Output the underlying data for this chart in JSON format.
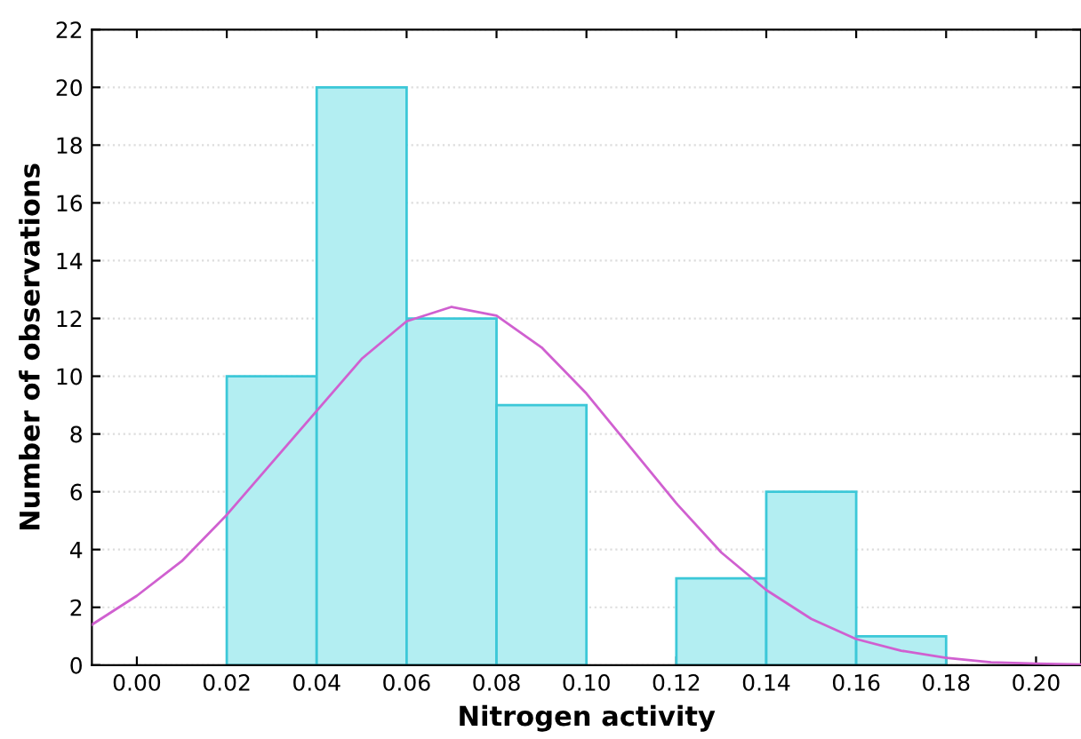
{
  "chart_data": {
    "type": "histogram",
    "xlabel": "Nitrogen activity",
    "ylabel": "Number of observations",
    "bins": [
      0.02,
      0.04,
      0.06,
      0.08,
      0.1,
      0.12,
      0.14,
      0.16,
      0.18
    ],
    "values": [
      10,
      20,
      12,
      9,
      0,
      3,
      6,
      1
    ],
    "color": "#b3eef2",
    "series": [
      {
        "type": "line",
        "color": "#d060d0",
        "x": [
          -0.01,
          0.0,
          0.01,
          0.02,
          0.03,
          0.04,
          0.05,
          0.06,
          0.07,
          0.08,
          0.09,
          0.1,
          0.11,
          0.12,
          0.13,
          0.14,
          0.15,
          0.16,
          0.17,
          0.18,
          0.19,
          0.2,
          0.21
        ],
        "values": [
          1.4,
          2.4,
          3.6,
          5.2,
          7.0,
          8.8,
          10.6,
          11.9,
          12.4,
          12.1,
          11.0,
          9.4,
          7.5,
          5.6,
          3.9,
          2.6,
          1.6,
          0.9,
          0.5,
          0.25,
          0.1,
          0.05,
          0.02
        ]
      }
    ],
    "xlim": [
      -0.01,
      0.21
    ],
    "ylim": [
      0,
      22
    ],
    "xticks": [
      {
        "value": 0,
        "label": "0.00"
      },
      0.02,
      0.04,
      0.06,
      0.08,
      {
        "value": 0.1,
        "label": "0.10"
      },
      0.12,
      0.14,
      0.16,
      0.18,
      {
        "value": 0.2,
        "label": "0.20"
      }
    ],
    "yticks": [
      0,
      2,
      4,
      6,
      8,
      10,
      12,
      14,
      16,
      18,
      20,
      22
    ],
    "grid": "y"
  }
}
